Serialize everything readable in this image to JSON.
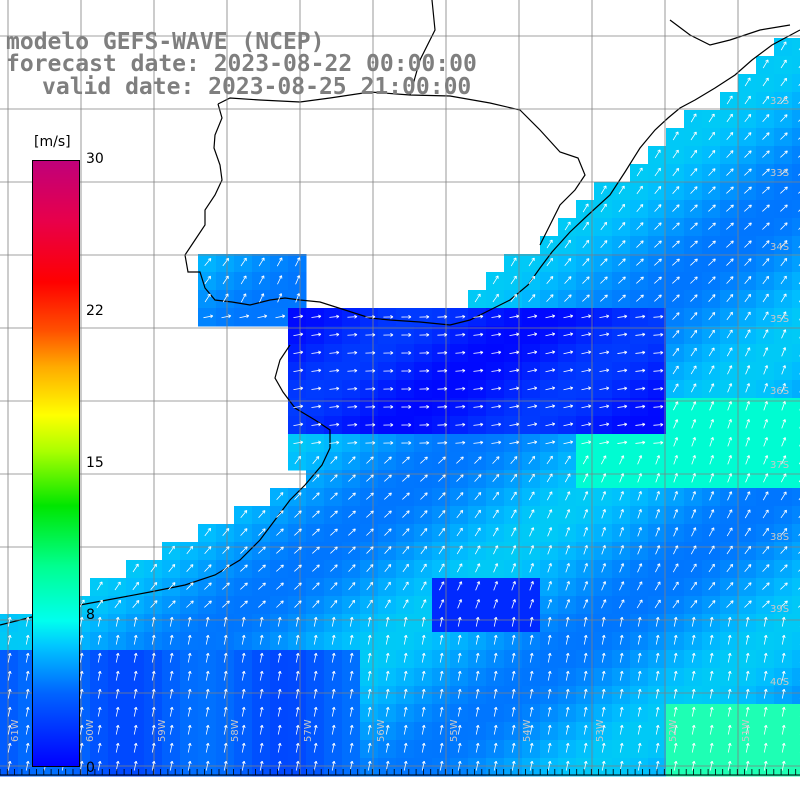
{
  "header": {
    "model_line": "modelo GEFS-WAVE (NCEP)",
    "forecast_line": "forecast date: 2023-08-22 00:00:00",
    "valid_line": "valid date: 2023-08-25 21:00:00"
  },
  "colorbar": {
    "unit": "[m/s]",
    "ticks": [
      "30",
      "22",
      "15",
      "8",
      "0"
    ],
    "stops": [
      "#0000ff",
      "#0064ff",
      "#00c8ff",
      "#00ffee",
      "#00ff90",
      "#00e600",
      "#aaff00",
      "#ffff00",
      "#ffaa00",
      "#ff5000",
      "#ff0000",
      "#e8004a",
      "#c0007a"
    ]
  },
  "map": {
    "longitude_labels": [
      "61W",
      "60W",
      "59W",
      "58W",
      "57W",
      "56W",
      "55W",
      "54W",
      "53W",
      "52W",
      "51W"
    ],
    "latitude_labels": [
      "32S",
      "33S",
      "34S",
      "35S",
      "36S",
      "37S",
      "38S",
      "39S",
      "40S"
    ],
    "land_color": "#ffffff",
    "coast_color": "#000000",
    "grid_color": "#808080",
    "arrow_color": "#ffffff"
  }
}
